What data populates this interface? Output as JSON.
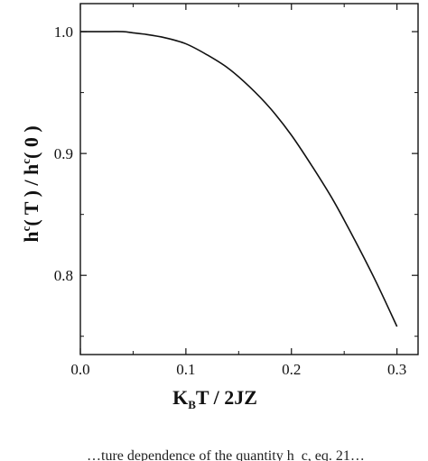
{
  "chart_data": {
    "type": "line",
    "title": "",
    "xlabel": {
      "main": "K",
      "sub": "B",
      "rest": "T / 2JZ"
    },
    "ylabel": {
      "h1": "h",
      "sup1": "c",
      "mid": "( T )  /  h",
      "sup2": "c",
      "end": "( 0 )"
    },
    "xlim": [
      0.0,
      0.32
    ],
    "ylim": [
      0.735,
      1.023
    ],
    "xticks": [
      0.0,
      0.1,
      0.2,
      0.3
    ],
    "xtick_labels": [
      "0.0",
      "0.1",
      "0.2",
      "0.3"
    ],
    "yticks": [
      0.8,
      0.9,
      1.0
    ],
    "ytick_labels": [
      "0.8",
      "0.9",
      "1.0"
    ],
    "grid": false,
    "series": [
      {
        "x": [
          0.0,
          0.02,
          0.04,
          0.05,
          0.06,
          0.08,
          0.1,
          0.12,
          0.14,
          0.16,
          0.18,
          0.2,
          0.22,
          0.24,
          0.26,
          0.28,
          0.3
        ],
        "y": [
          1.0,
          1.0,
          1.0,
          0.999,
          0.998,
          0.995,
          0.99,
          0.981,
          0.97,
          0.955,
          0.937,
          0.915,
          0.889,
          0.861,
          0.829,
          0.795,
          0.758
        ]
      }
    ],
    "line_color": "#111111"
  },
  "caption_fragment": "…ture dependence of the quantity h_c, eq. 21…"
}
